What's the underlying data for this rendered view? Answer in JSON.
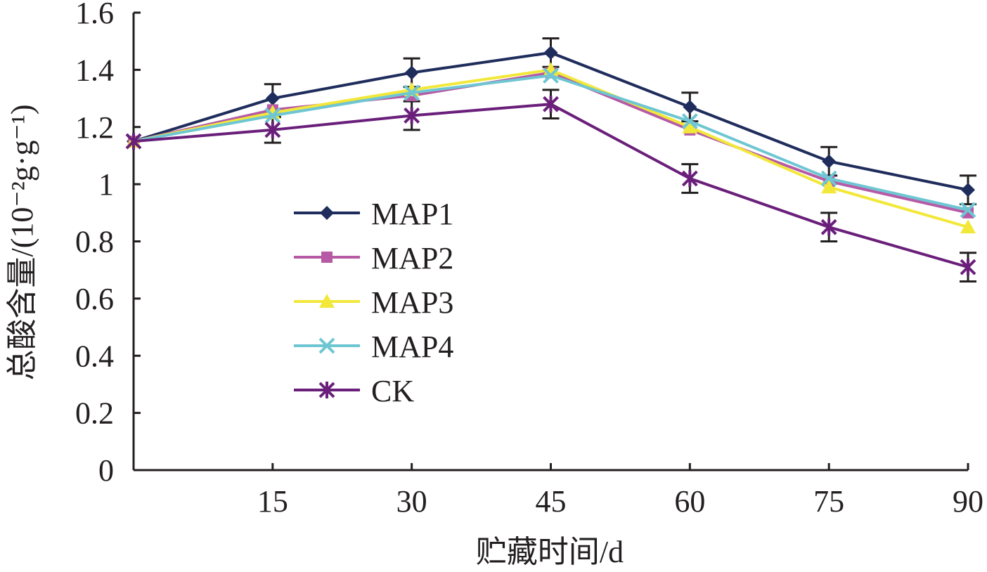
{
  "chart_data": {
    "type": "line",
    "xlabel": "贮藏时间/d",
    "ylabel": "总酸含量/(10⁻²g·g⁻¹)",
    "x": [
      0,
      15,
      30,
      45,
      60,
      75,
      90
    ],
    "xticks": [
      "15",
      "30",
      "45",
      "60",
      "75",
      "90"
    ],
    "yticks": [
      "0",
      "0.2",
      "0.4",
      "0.6",
      "0.8",
      "1",
      "1.2",
      "1.4",
      "1.6"
    ],
    "xlim": [
      0,
      90
    ],
    "ylim": [
      0,
      1.6
    ],
    "grid": false,
    "legend_position": "center-left",
    "series": [
      {
        "name": "MAP1",
        "color": "#1f2d5c",
        "marker": "diamond",
        "values": [
          1.15,
          1.3,
          1.39,
          1.46,
          1.27,
          1.08,
          0.98
        ],
        "error": [
          0,
          0.05,
          0.05,
          0.05,
          0.05,
          0.05,
          0.05
        ]
      },
      {
        "name": "MAP2",
        "color": "#b65aa6",
        "marker": "square",
        "values": [
          1.15,
          1.26,
          1.31,
          1.39,
          1.19,
          1.01,
          0.9
        ],
        "error": [
          0,
          0,
          0,
          0,
          0,
          0,
          0
        ]
      },
      {
        "name": "MAP3",
        "color": "#f2e83a",
        "marker": "triangle",
        "values": [
          1.15,
          1.25,
          1.33,
          1.4,
          1.2,
          0.99,
          0.85
        ],
        "error": [
          0,
          0,
          0,
          0,
          0,
          0,
          0
        ]
      },
      {
        "name": "MAP4",
        "color": "#6ec6d3",
        "marker": "x",
        "values": [
          1.15,
          1.24,
          1.32,
          1.38,
          1.22,
          1.02,
          0.91
        ],
        "error": [
          0,
          0,
          0,
          0,
          0,
          0,
          0
        ]
      },
      {
        "name": "CK",
        "color": "#6a1f7a",
        "marker": "star",
        "values": [
          1.15,
          1.19,
          1.24,
          1.28,
          1.02,
          0.85,
          0.71
        ],
        "error": [
          0,
          0.045,
          0.05,
          0.05,
          0.05,
          0.05,
          0.05
        ]
      }
    ]
  }
}
